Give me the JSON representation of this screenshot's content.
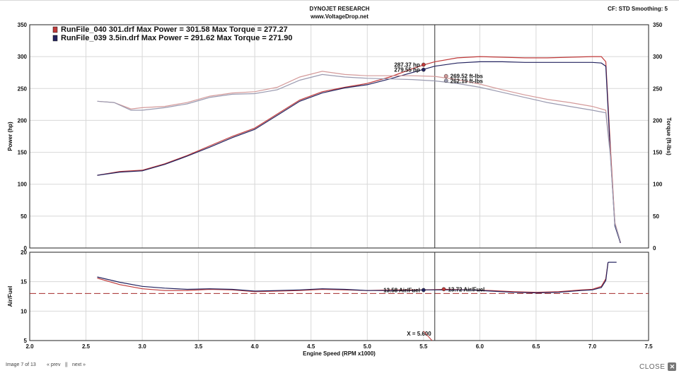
{
  "header": {
    "title": "DYNOJET RESEARCH",
    "subtitle": "www.VoltageDrop.net",
    "cf_info": "CF: STD  Smoothing: 5"
  },
  "colors": {
    "run040": "#c03a3a",
    "run039": "#23235f",
    "run040_light": "#d49a9a",
    "run039_light": "#9a9ab0",
    "stoich_line": "#a52a2a",
    "cursor": "#333333"
  },
  "footer": {
    "image_counter": "Image 7 of 13",
    "prev_label": "« prev",
    "separator": "||",
    "next_label": "next »",
    "close_label": "CLOSE",
    "close_icon": "close-icon"
  },
  "chart_data": [
    {
      "type": "line",
      "panel": "power-torque",
      "ylabel_left": "Power (hp)",
      "ylabel_right": "Torque (ft-lbs)",
      "xlim": [
        2.0,
        7.5
      ],
      "ylim": [
        0,
        350
      ],
      "y_ticks": [
        0,
        50,
        100,
        150,
        200,
        250,
        300,
        350
      ],
      "grid": true,
      "legend": [
        {
          "swatch": "run040",
          "text": "RunFile_040 301.drf Max Power = 301.58     Max Torque = 277.27"
        },
        {
          "swatch": "run039",
          "text": "RunFile_039 3.5in.drf Max Power = 291.62     Max Torque = 271.90"
        }
      ],
      "legend_position": "top-left",
      "cursor_x": 5.6,
      "series": [
        {
          "name": "RunFile_040 301.drf",
          "kind": "power",
          "color_key": "run040",
          "x": [
            2.6,
            2.8,
            3.0,
            3.2,
            3.4,
            3.6,
            3.8,
            4.0,
            4.2,
            4.4,
            4.6,
            4.8,
            5.0,
            5.2,
            5.4,
            5.5,
            5.6,
            5.8,
            6.0,
            6.2,
            6.4,
            6.6,
            6.8,
            7.0,
            7.08,
            7.12,
            7.16,
            7.2,
            7.25
          ],
          "y": [
            114,
            120,
            122,
            132,
            145,
            160,
            175,
            188,
            210,
            232,
            245,
            252,
            258,
            268,
            281,
            287,
            292,
            298,
            300,
            299,
            298,
            298,
            299,
            300,
            300,
            292,
            160,
            40,
            8
          ]
        },
        {
          "name": "RunFile_039 3.5in.drf",
          "kind": "power",
          "color_key": "run039",
          "x": [
            2.6,
            2.8,
            3.0,
            3.2,
            3.4,
            3.6,
            3.8,
            4.0,
            4.2,
            4.4,
            4.6,
            4.8,
            5.0,
            5.2,
            5.4,
            5.5,
            5.6,
            5.8,
            6.0,
            6.2,
            6.4,
            6.6,
            6.8,
            7.0,
            7.08,
            7.12,
            7.16,
            7.2,
            7.25
          ],
          "y": [
            114,
            119,
            121,
            131,
            144,
            158,
            173,
            186,
            208,
            230,
            243,
            251,
            256,
            265,
            275,
            280,
            285,
            290,
            292,
            292,
            291,
            291,
            291,
            291,
            290,
            285,
            150,
            35,
            8
          ]
        },
        {
          "name": "RunFile_040 301.drf",
          "kind": "torque",
          "color_key": "run040_light",
          "x": [
            2.6,
            2.75,
            2.9,
            3.0,
            3.2,
            3.4,
            3.6,
            3.8,
            4.0,
            4.2,
            4.4,
            4.6,
            4.8,
            5.0,
            5.2,
            5.4,
            5.6,
            5.8,
            6.0,
            6.2,
            6.4,
            6.6,
            6.8,
            7.0,
            7.12,
            7.16,
            7.2,
            7.25
          ],
          "y": [
            230,
            228,
            218,
            220,
            222,
            228,
            238,
            243,
            245,
            252,
            268,
            277,
            272,
            270,
            270,
            270,
            269,
            264,
            257,
            248,
            240,
            233,
            228,
            222,
            216,
            150,
            40,
            10
          ]
        },
        {
          "name": "RunFile_039 3.5in.drf",
          "kind": "torque",
          "color_key": "run039_light",
          "x": [
            2.6,
            2.75,
            2.9,
            3.0,
            3.2,
            3.4,
            3.6,
            3.8,
            4.0,
            4.2,
            4.4,
            4.6,
            4.8,
            5.0,
            5.2,
            5.4,
            5.6,
            5.8,
            6.0,
            6.2,
            6.4,
            6.6,
            6.8,
            7.0,
            7.12,
            7.16,
            7.2,
            7.25
          ],
          "y": [
            230,
            228,
            216,
            216,
            220,
            226,
            236,
            241,
            242,
            248,
            263,
            272,
            268,
            266,
            265,
            264,
            262,
            258,
            252,
            244,
            236,
            228,
            222,
            216,
            212,
            145,
            38,
            10
          ]
        }
      ],
      "annotations": [
        {
          "text": "287.37 hp",
          "x": 5.5,
          "y": 287.37,
          "color_key": "run040",
          "side": "left"
        },
        {
          "text": "279.55 hp",
          "x": 5.5,
          "y": 279.55,
          "color_key": "run039",
          "side": "left"
        },
        {
          "text": "269.52 ft-lbs",
          "x": 5.7,
          "y": 269.52,
          "color_key": "run040_light",
          "side": "right"
        },
        {
          "text": "262.19 ft-lbs",
          "x": 5.7,
          "y": 262.19,
          "color_key": "run039_light",
          "side": "right"
        }
      ]
    },
    {
      "type": "line",
      "panel": "air-fuel",
      "ylabel": "Air/Fuel",
      "xlabel": "Engine Speed (RPM x1000)",
      "xlim": [
        2.0,
        7.5
      ],
      "x_ticks": [
        2.0,
        2.5,
        3.0,
        3.5,
        4.0,
        4.5,
        5.0,
        5.5,
        6.0,
        6.5,
        7.0,
        7.5
      ],
      "ylim": [
        5,
        20
      ],
      "y_ticks": [
        5,
        10,
        15,
        20
      ],
      "grid": true,
      "reference_line": 13.0,
      "cursor_x": 5.6,
      "series": [
        {
          "name": "RunFile_040 301.drf",
          "color_key": "run040",
          "x": [
            2.6,
            2.8,
            3.0,
            3.2,
            3.4,
            3.6,
            3.8,
            4.0,
            4.2,
            4.4,
            4.6,
            4.8,
            5.0,
            5.2,
            5.4,
            5.5,
            5.7,
            5.9,
            6.1,
            6.3,
            6.5,
            6.7,
            6.9,
            7.0,
            7.08,
            7.12,
            7.14
          ],
          "y": [
            15.6,
            14.5,
            13.8,
            13.5,
            13.5,
            13.7,
            13.6,
            13.3,
            13.4,
            13.5,
            13.7,
            13.6,
            13.5,
            13.6,
            13.6,
            13.6,
            13.7,
            13.6,
            13.5,
            13.3,
            13.2,
            13.3,
            13.6,
            13.7,
            14.2,
            15.5,
            18.3
          ]
        },
        {
          "name": "RunFile_039 3.5in.drf",
          "color_key": "run039",
          "x": [
            2.6,
            2.8,
            3.0,
            3.2,
            3.4,
            3.6,
            3.8,
            4.0,
            4.2,
            4.4,
            4.6,
            4.8,
            5.0,
            5.2,
            5.4,
            5.5,
            5.7,
            5.9,
            6.1,
            6.3,
            6.5,
            6.7,
            6.9,
            7.0,
            7.08,
            7.12,
            7.14
          ],
          "y": [
            15.8,
            14.9,
            14.2,
            13.9,
            13.7,
            13.8,
            13.7,
            13.4,
            13.5,
            13.6,
            13.8,
            13.7,
            13.5,
            13.5,
            13.5,
            13.6,
            13.6,
            13.6,
            13.4,
            13.2,
            13.1,
            13.2,
            13.5,
            13.6,
            14.0,
            15.2,
            18.3
          ]
        }
      ],
      "annotations": [
        {
          "text": "13.58 Air/Fuel",
          "x": 5.5,
          "y": 13.58,
          "color_key": "run039",
          "side": "left"
        },
        {
          "text": "13.72 Air/Fuel",
          "x": 5.68,
          "y": 13.72,
          "color_key": "run040",
          "side": "right"
        },
        {
          "text": "X = 5.600",
          "x": 5.6,
          "y": 6.2,
          "side": "left"
        }
      ]
    }
  ]
}
